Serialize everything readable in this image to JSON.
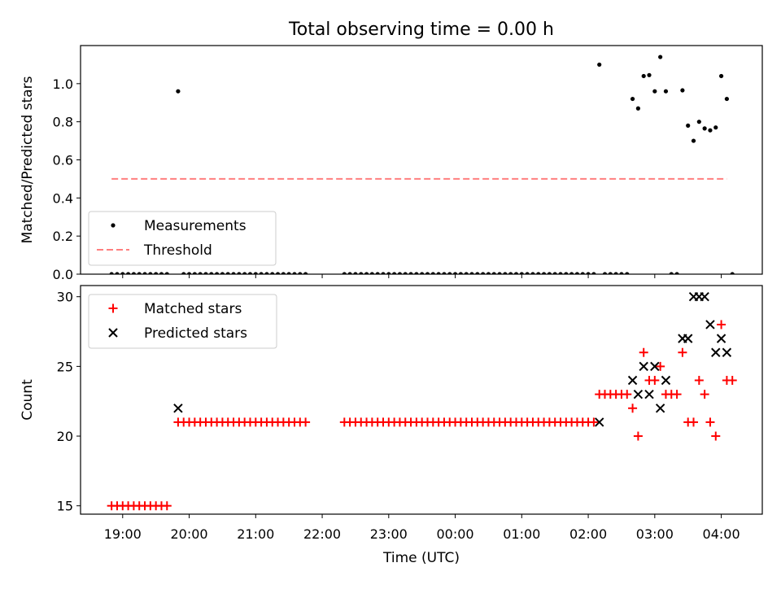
{
  "title": "Total observing time = 0.00 h",
  "chart_data": [
    {
      "type": "scatter",
      "panel": "top",
      "ylabel": "Matched/Predicted stars",
      "ylim": [
        0,
        1.2
      ],
      "yticks": [
        "0.0",
        "0.2",
        "0.4",
        "0.6",
        "0.8",
        "1.0"
      ],
      "xlim": [
        "18:22",
        "04:37"
      ],
      "legend": {
        "position": "lower-left",
        "entries": [
          "Measurements",
          "Threshold"
        ]
      },
      "threshold": {
        "name": "Threshold",
        "value": 0.5,
        "from": "18:50",
        "to": "04:05",
        "color": "#ff7f7f"
      },
      "series": [
        {
          "name": "Measurements",
          "color": "#000000",
          "points": [
            [
              "18:50",
              0
            ],
            [
              "18:55",
              0
            ],
            [
              "19:00",
              0
            ],
            [
              "19:05",
              0
            ],
            [
              "19:10",
              0
            ],
            [
              "19:15",
              0
            ],
            [
              "19:20",
              0
            ],
            [
              "19:25",
              0
            ],
            [
              "19:30",
              0
            ],
            [
              "19:35",
              0
            ],
            [
              "19:40",
              0
            ],
            [
              "19:50",
              0.96
            ],
            [
              "19:55",
              0
            ],
            [
              "20:00",
              0
            ],
            [
              "20:05",
              0
            ],
            [
              "20:10",
              0
            ],
            [
              "20:15",
              0
            ],
            [
              "20:20",
              0
            ],
            [
              "20:25",
              0
            ],
            [
              "20:30",
              0
            ],
            [
              "20:35",
              0
            ],
            [
              "20:40",
              0
            ],
            [
              "20:45",
              0
            ],
            [
              "20:50",
              0
            ],
            [
              "20:55",
              0
            ],
            [
              "21:00",
              0
            ],
            [
              "21:05",
              0
            ],
            [
              "21:10",
              0
            ],
            [
              "21:15",
              0
            ],
            [
              "21:20",
              0
            ],
            [
              "21:25",
              0
            ],
            [
              "21:30",
              0
            ],
            [
              "21:35",
              0
            ],
            [
              "21:40",
              0
            ],
            [
              "21:45",
              0
            ],
            [
              "22:20",
              0
            ],
            [
              "22:25",
              0
            ],
            [
              "22:30",
              0
            ],
            [
              "22:35",
              0
            ],
            [
              "22:40",
              0
            ],
            [
              "22:45",
              0
            ],
            [
              "22:50",
              0
            ],
            [
              "22:55",
              0
            ],
            [
              "23:00",
              0
            ],
            [
              "23:05",
              0
            ],
            [
              "23:10",
              0
            ],
            [
              "23:15",
              0
            ],
            [
              "23:20",
              0
            ],
            [
              "23:25",
              0
            ],
            [
              "23:30",
              0
            ],
            [
              "23:35",
              0
            ],
            [
              "23:40",
              0
            ],
            [
              "23:45",
              0
            ],
            [
              "23:50",
              0
            ],
            [
              "23:55",
              0
            ],
            [
              "00:00",
              0
            ],
            [
              "00:05",
              0
            ],
            [
              "00:10",
              0
            ],
            [
              "00:15",
              0
            ],
            [
              "00:20",
              0
            ],
            [
              "00:25",
              0
            ],
            [
              "00:30",
              0
            ],
            [
              "00:35",
              0
            ],
            [
              "00:40",
              0
            ],
            [
              "00:45",
              0
            ],
            [
              "00:50",
              0
            ],
            [
              "00:55",
              0
            ],
            [
              "01:00",
              0
            ],
            [
              "01:05",
              0
            ],
            [
              "01:10",
              0
            ],
            [
              "01:15",
              0
            ],
            [
              "01:20",
              0
            ],
            [
              "01:25",
              0
            ],
            [
              "01:30",
              0
            ],
            [
              "01:35",
              0
            ],
            [
              "01:40",
              0
            ],
            [
              "01:45",
              0
            ],
            [
              "01:50",
              0
            ],
            [
              "01:55",
              0
            ],
            [
              "02:00",
              0
            ],
            [
              "02:05",
              0
            ],
            [
              "02:10",
              1.1
            ],
            [
              "02:15",
              0
            ],
            [
              "02:20",
              0
            ],
            [
              "02:25",
              0
            ],
            [
              "02:30",
              0
            ],
            [
              "02:35",
              0
            ],
            [
              "02:40",
              0.92
            ],
            [
              "02:45",
              0.87
            ],
            [
              "02:50",
              1.04
            ],
            [
              "02:55",
              1.045
            ],
            [
              "03:00",
              0.96
            ],
            [
              "03:05",
              1.14
            ],
            [
              "03:10",
              0.96
            ],
            [
              "03:15",
              0
            ],
            [
              "03:20",
              0
            ],
            [
              "03:25",
              0.965
            ],
            [
              "03:30",
              0.78
            ],
            [
              "03:35",
              0.7
            ],
            [
              "03:40",
              0.8
            ],
            [
              "03:45",
              0.765
            ],
            [
              "03:50",
              0.755
            ],
            [
              "03:55",
              0.77
            ],
            [
              "04:00",
              1.04
            ],
            [
              "04:05",
              0.92
            ],
            [
              "04:10",
              0
            ]
          ]
        }
      ]
    },
    {
      "type": "scatter",
      "panel": "bottom",
      "ylabel": "Count",
      "xlabel": "Time (UTC)",
      "ylim": [
        14.4,
        30.8
      ],
      "yticks": [
        "15",
        "20",
        "25",
        "30"
      ],
      "xlim": [
        "18:22",
        "04:37"
      ],
      "xticks": [
        "19:00",
        "20:00",
        "21:00",
        "22:00",
        "23:00",
        "00:00",
        "01:00",
        "02:00",
        "03:00",
        "04:00"
      ],
      "legend": {
        "position": "upper-left",
        "entries": [
          "Matched stars",
          "Predicted stars"
        ]
      },
      "series": [
        {
          "name": "Matched stars",
          "color": "#ff0000",
          "marker": "plus",
          "points": [
            [
              "18:50",
              15
            ],
            [
              "18:55",
              15
            ],
            [
              "19:00",
              15
            ],
            [
              "19:05",
              15
            ],
            [
              "19:10",
              15
            ],
            [
              "19:15",
              15
            ],
            [
              "19:20",
              15
            ],
            [
              "19:25",
              15
            ],
            [
              "19:30",
              15
            ],
            [
              "19:35",
              15
            ],
            [
              "19:40",
              15
            ],
            [
              "19:50",
              21
            ],
            [
              "19:55",
              21
            ],
            [
              "20:00",
              21
            ],
            [
              "20:05",
              21
            ],
            [
              "20:10",
              21
            ],
            [
              "20:15",
              21
            ],
            [
              "20:20",
              21
            ],
            [
              "20:25",
              21
            ],
            [
              "20:30",
              21
            ],
            [
              "20:35",
              21
            ],
            [
              "20:40",
              21
            ],
            [
              "20:45",
              21
            ],
            [
              "20:50",
              21
            ],
            [
              "20:55",
              21
            ],
            [
              "21:00",
              21
            ],
            [
              "21:05",
              21
            ],
            [
              "21:10",
              21
            ],
            [
              "21:15",
              21
            ],
            [
              "21:20",
              21
            ],
            [
              "21:25",
              21
            ],
            [
              "21:30",
              21
            ],
            [
              "21:35",
              21
            ],
            [
              "21:40",
              21
            ],
            [
              "21:45",
              21
            ],
            [
              "22:20",
              21
            ],
            [
              "22:25",
              21
            ],
            [
              "22:30",
              21
            ],
            [
              "22:35",
              21
            ],
            [
              "22:40",
              21
            ],
            [
              "22:45",
              21
            ],
            [
              "22:50",
              21
            ],
            [
              "22:55",
              21
            ],
            [
              "23:00",
              21
            ],
            [
              "23:05",
              21
            ],
            [
              "23:10",
              21
            ],
            [
              "23:15",
              21
            ],
            [
              "23:20",
              21
            ],
            [
              "23:25",
              21
            ],
            [
              "23:30",
              21
            ],
            [
              "23:35",
              21
            ],
            [
              "23:40",
              21
            ],
            [
              "23:45",
              21
            ],
            [
              "23:50",
              21
            ],
            [
              "23:55",
              21
            ],
            [
              "00:00",
              21
            ],
            [
              "00:05",
              21
            ],
            [
              "00:10",
              21
            ],
            [
              "00:15",
              21
            ],
            [
              "00:20",
              21
            ],
            [
              "00:25",
              21
            ],
            [
              "00:30",
              21
            ],
            [
              "00:35",
              21
            ],
            [
              "00:40",
              21
            ],
            [
              "00:45",
              21
            ],
            [
              "00:50",
              21
            ],
            [
              "00:55",
              21
            ],
            [
              "01:00",
              21
            ],
            [
              "01:05",
              21
            ],
            [
              "01:10",
              21
            ],
            [
              "01:15",
              21
            ],
            [
              "01:20",
              21
            ],
            [
              "01:25",
              21
            ],
            [
              "01:30",
              21
            ],
            [
              "01:35",
              21
            ],
            [
              "01:40",
              21
            ],
            [
              "01:45",
              21
            ],
            [
              "01:50",
              21
            ],
            [
              "01:55",
              21
            ],
            [
              "02:00",
              21
            ],
            [
              "02:05",
              21
            ],
            [
              "02:10",
              23
            ],
            [
              "02:15",
              23
            ],
            [
              "02:20",
              23
            ],
            [
              "02:25",
              23
            ],
            [
              "02:30",
              23
            ],
            [
              "02:35",
              23
            ],
            [
              "02:40",
              22
            ],
            [
              "02:45",
              20
            ],
            [
              "02:50",
              26
            ],
            [
              "02:55",
              24
            ],
            [
              "03:00",
              24
            ],
            [
              "03:05",
              25
            ],
            [
              "03:10",
              23
            ],
            [
              "03:15",
              23
            ],
            [
              "03:20",
              23
            ],
            [
              "03:25",
              26
            ],
            [
              "03:30",
              21
            ],
            [
              "03:35",
              21
            ],
            [
              "03:40",
              24
            ],
            [
              "03:45",
              23
            ],
            [
              "03:50",
              21
            ],
            [
              "03:55",
              20
            ],
            [
              "04:00",
              28
            ],
            [
              "04:05",
              24
            ],
            [
              "04:10",
              24
            ]
          ]
        },
        {
          "name": "Predicted stars",
          "color": "#000000",
          "marker": "x",
          "points": [
            [
              "19:50",
              22
            ],
            [
              "02:10",
              21
            ],
            [
              "02:40",
              24
            ],
            [
              "02:45",
              23
            ],
            [
              "02:50",
              25
            ],
            [
              "02:55",
              23
            ],
            [
              "03:00",
              25
            ],
            [
              "03:05",
              22
            ],
            [
              "03:10",
              24
            ],
            [
              "03:25",
              27
            ],
            [
              "03:30",
              27
            ],
            [
              "03:35",
              30
            ],
            [
              "03:40",
              30
            ],
            [
              "03:45",
              30
            ],
            [
              "03:50",
              28
            ],
            [
              "03:55",
              26
            ],
            [
              "04:00",
              27
            ],
            [
              "04:05",
              26
            ]
          ]
        }
      ]
    }
  ]
}
